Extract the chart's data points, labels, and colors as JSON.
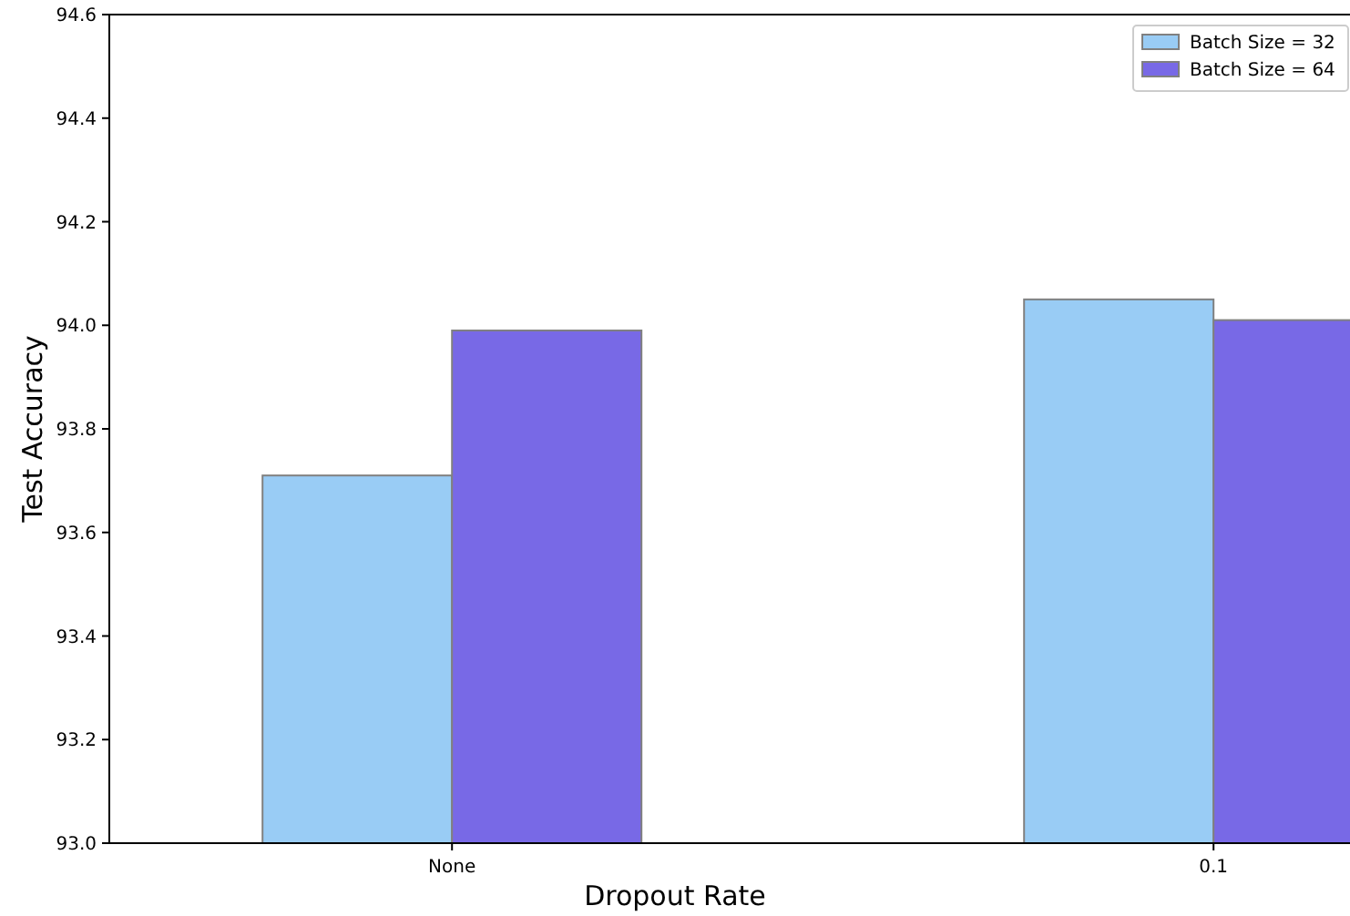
{
  "chart_data": {
    "type": "bar",
    "categories": [
      "None",
      "0.1"
    ],
    "xlabel": "Dropout Rate",
    "ylabel": "Test Accuracy",
    "series": [
      {
        "name": "Batch Size = 32",
        "color": "#99ccf5",
        "values": [
          93.71,
          94.05
        ]
      },
      {
        "name": "Batch Size = 64",
        "color": "#7869e6",
        "values": [
          93.99,
          94.01
        ]
      }
    ],
    "ylim": [
      93.0,
      94.6
    ],
    "yticks": [
      {
        "value": 93.0,
        "label": "93.0"
      },
      {
        "value": 93.2,
        "label": "93.2"
      },
      {
        "value": 93.4,
        "label": "93.4"
      },
      {
        "value": 93.6,
        "label": "93.6"
      },
      {
        "value": 93.8,
        "label": "93.8"
      },
      {
        "value": 94.0,
        "label": "94.0"
      },
      {
        "value": 94.2,
        "label": "94.2"
      },
      {
        "value": 94.4,
        "label": "94.4"
      },
      {
        "value": 94.6,
        "label": "94.6"
      }
    ],
    "legend": "top right"
  }
}
